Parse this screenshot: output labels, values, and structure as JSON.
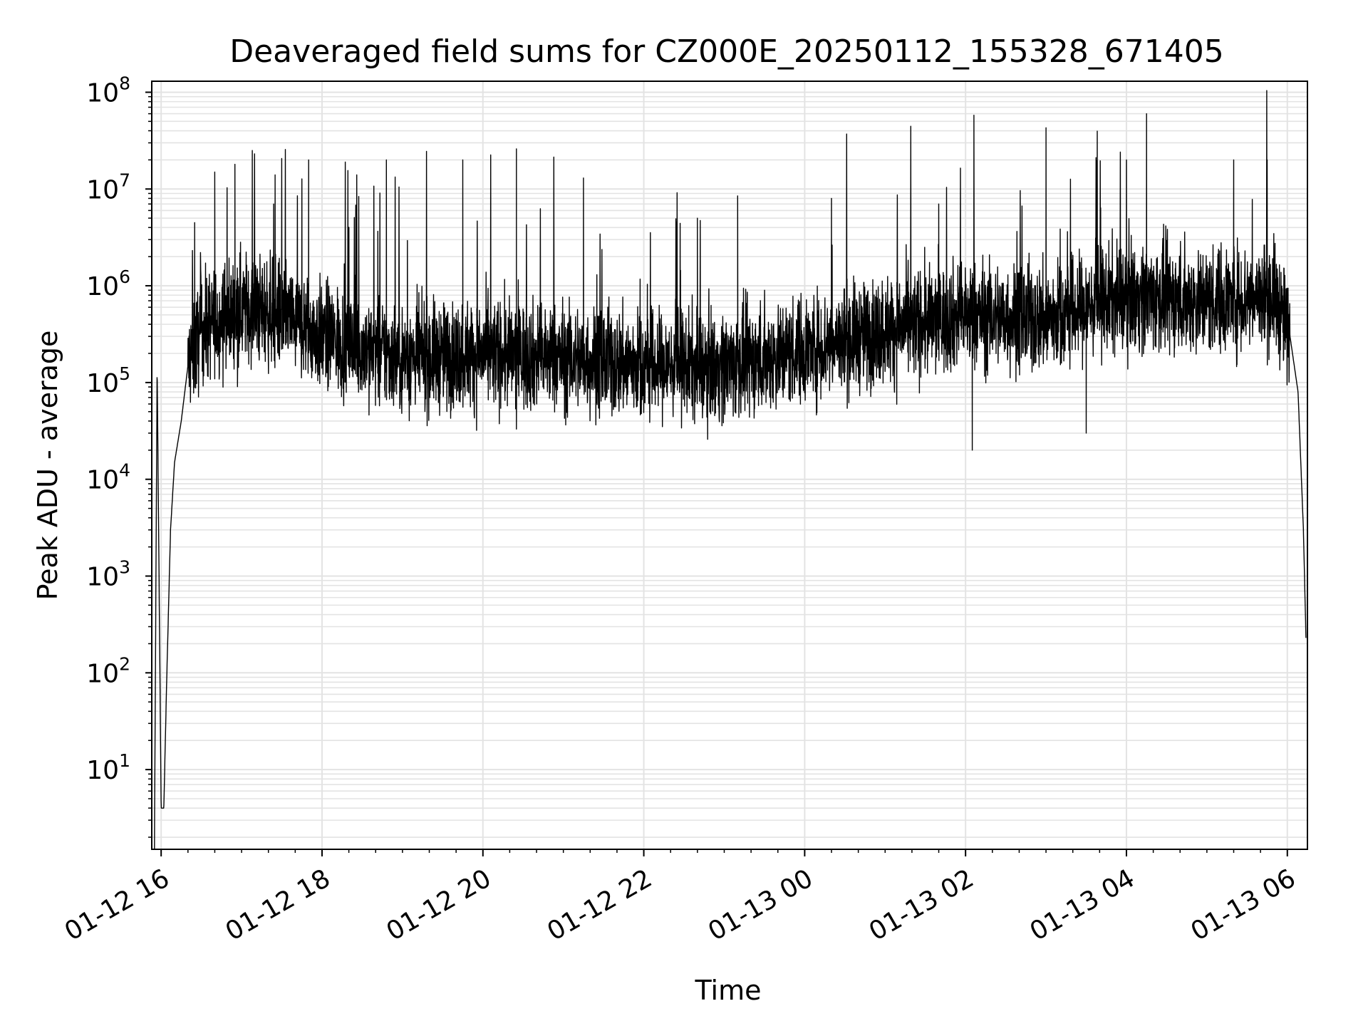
{
  "chart_data": {
    "type": "line",
    "title": "Deaveraged field sums for CZ000E_20250112_155328_671405",
    "xlabel": "Time",
    "ylabel": "Peak ADU - average",
    "y_scale": "log",
    "ylim": [
      1.5,
      130000000
    ],
    "xlim": [
      "2025-01-12T15:53:00",
      "2025-01-13T06:15:00"
    ],
    "grid": true,
    "x_ticks": [
      {
        "label": "01-12 16",
        "t": "2025-01-12T16:00:00"
      },
      {
        "label": "01-12 18",
        "t": "2025-01-12T18:00:00"
      },
      {
        "label": "01-12 20",
        "t": "2025-01-12T20:00:00"
      },
      {
        "label": "01-12 22",
        "t": "2025-01-12T22:00:00"
      },
      {
        "label": "01-13 00",
        "t": "2025-01-13T00:00:00"
      },
      {
        "label": "01-13 02",
        "t": "2025-01-13T02:00:00"
      },
      {
        "label": "01-13 04",
        "t": "2025-01-13T04:00:00"
      },
      {
        "label": "01-13 06",
        "t": "2025-01-13T06:00:00"
      }
    ],
    "y_ticks": [
      {
        "base": "10",
        "exp": "1",
        "value": 10
      },
      {
        "base": "10",
        "exp": "2",
        "value": 100
      },
      {
        "base": "10",
        "exp": "3",
        "value": 1000
      },
      {
        "base": "10",
        "exp": "4",
        "value": 10000
      },
      {
        "base": "10",
        "exp": "5",
        "value": 100000
      },
      {
        "base": "10",
        "exp": "6",
        "value": 1000000
      },
      {
        "base": "10",
        "exp": "7",
        "value": 10000000
      },
      {
        "base": "10",
        "exp": "8",
        "value": 100000000
      }
    ],
    "series": [
      {
        "color": "#000000",
        "envelope": [
          {
            "t": "2025-01-12T15:55:00",
            "y": 1.5
          },
          {
            "t": "2025-01-12T15:57:00",
            "y": 150000
          },
          {
            "t": "2025-01-12T16:00:00",
            "y": 4
          },
          {
            "t": "2025-01-12T16:02:00",
            "y": 4
          },
          {
            "t": "2025-01-12T16:04:00",
            "y": 70
          },
          {
            "t": "2025-01-12T16:07:00",
            "y": 3000
          },
          {
            "t": "2025-01-12T16:10:00",
            "y": 15000
          },
          {
            "t": "2025-01-12T16:15:00",
            "y": 40000
          },
          {
            "t": "2025-01-12T16:20:00",
            "y": 150000
          },
          {
            "t": "2025-01-12T16:30:00",
            "y": 350000
          },
          {
            "t": "2025-01-12T17:00:00",
            "y": 600000
          },
          {
            "t": "2025-01-12T17:30:00",
            "y": 500000
          },
          {
            "t": "2025-01-12T18:00:00",
            "y": 300000
          },
          {
            "t": "2025-01-12T19:00:00",
            "y": 180000
          },
          {
            "t": "2025-01-12T20:00:00",
            "y": 200000
          },
          {
            "t": "2025-01-12T21:00:00",
            "y": 180000
          },
          {
            "t": "2025-01-12T22:00:00",
            "y": 150000
          },
          {
            "t": "2025-01-12T23:00:00",
            "y": 150000
          },
          {
            "t": "2025-01-13T00:00:00",
            "y": 220000
          },
          {
            "t": "2025-01-13T01:00:00",
            "y": 350000
          },
          {
            "t": "2025-01-13T02:00:00",
            "y": 500000
          },
          {
            "t": "2025-01-13T03:00:00",
            "y": 450000
          },
          {
            "t": "2025-01-13T04:00:00",
            "y": 800000
          },
          {
            "t": "2025-01-13T05:00:00",
            "y": 700000
          },
          {
            "t": "2025-01-13T05:50:00",
            "y": 800000
          },
          {
            "t": "2025-01-13T06:02:00",
            "y": 300000
          },
          {
            "t": "2025-01-13T06:08:00",
            "y": 80000
          },
          {
            "t": "2025-01-13T06:12:00",
            "y": 3000
          },
          {
            "t": "2025-01-13T06:14:00",
            "y": 200
          }
        ],
        "spikes": [
          {
            "t": "2025-01-12T16:25:00",
            "y": 4500000
          },
          {
            "t": "2025-01-12T16:40:00",
            "y": 15000000
          },
          {
            "t": "2025-01-12T16:55:00",
            "y": 18000000
          },
          {
            "t": "2025-01-12T17:08:00",
            "y": 25000000
          },
          {
            "t": "2025-01-12T17:25:00",
            "y": 14000000
          },
          {
            "t": "2025-01-12T17:50:00",
            "y": 20000000
          },
          {
            "t": "2025-01-12T18:48:00",
            "y": 20000000
          },
          {
            "t": "2025-01-12T19:45:00",
            "y": 20000000
          },
          {
            "t": "2025-01-12T20:25:00",
            "y": 26000000
          },
          {
            "t": "2025-01-12T21:15:00",
            "y": 13000000
          },
          {
            "t": "2025-01-12T22:40:00",
            "y": 5000000
          },
          {
            "t": "2025-01-12T23:10:00",
            "y": 8500000
          },
          {
            "t": "2025-01-13T00:20:00",
            "y": 8000000
          },
          {
            "t": "2025-01-13T01:40:00",
            "y": 7000000
          },
          {
            "t": "2025-01-13T03:00:00",
            "y": 43000000
          },
          {
            "t": "2025-01-13T04:00:00",
            "y": 20000000
          },
          {
            "t": "2025-01-13T04:15:00",
            "y": 60000000
          },
          {
            "t": "2025-01-13T05:20:00",
            "y": 20000000
          },
          {
            "t": "2025-01-13T05:45:00",
            "y": 20000000
          }
        ],
        "dips": [
          {
            "t": "2025-01-13T02:05:00",
            "y": 20000
          },
          {
            "t": "2025-01-13T03:30:00",
            "y": 30000
          },
          {
            "t": "2025-01-12T20:25:00",
            "y": 33000
          }
        ]
      }
    ]
  }
}
